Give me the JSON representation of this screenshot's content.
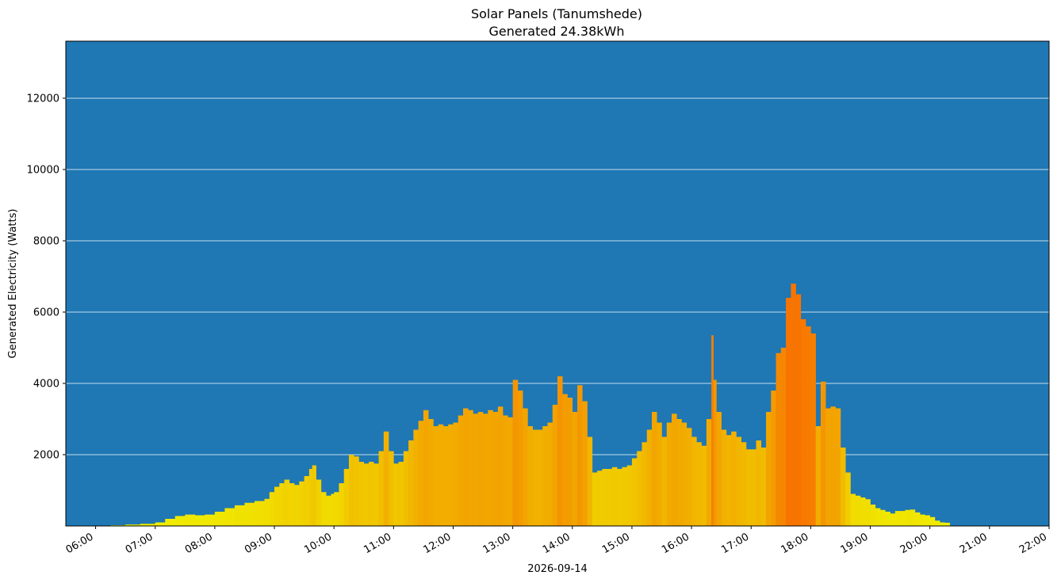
{
  "chart_data": {
    "type": "bar",
    "title": "Solar Panels (Tanumshede)",
    "subtitle": "Generated 24.38kWh",
    "xlabel": "2026-09-14",
    "ylabel": "Generated Electricity (Watts)",
    "xlim": [
      "05:30",
      "22:00"
    ],
    "ylim": [
      0,
      13600
    ],
    "grid": "y",
    "y_ticks": [
      2000,
      4000,
      6000,
      8000,
      10000,
      12000
    ],
    "y_tick_labels": [
      "2000",
      "4000",
      "6000",
      "8000",
      "10000",
      "12000"
    ],
    "x_ticks": [
      "06:00",
      "07:00",
      "08:00",
      "09:00",
      "10:00",
      "11:00",
      "12:00",
      "13:00",
      "14:00",
      "15:00",
      "16:00",
      "17:00",
      "18:00",
      "19:00",
      "20:00",
      "21:00",
      "22:00"
    ],
    "colors": {
      "plot_background": "#1f77b4",
      "grid": "#ffffff",
      "bar_low": "#f0f000",
      "bar_mid": "#f2a900",
      "bar_high": "#f87400"
    },
    "series": [
      {
        "points": [
          [
            "06:15",
            20
          ],
          [
            "06:30",
            40
          ],
          [
            "06:45",
            60
          ],
          [
            "07:00",
            100
          ],
          [
            "07:10",
            200
          ],
          [
            "07:20",
            280
          ],
          [
            "07:30",
            320
          ],
          [
            "07:40",
            300
          ],
          [
            "07:50",
            320
          ],
          [
            "08:00",
            400
          ],
          [
            "08:10",
            500
          ],
          [
            "08:20",
            580
          ],
          [
            "08:30",
            650
          ],
          [
            "08:40",
            700
          ],
          [
            "08:50",
            760
          ],
          [
            "08:55",
            950
          ],
          [
            "09:00",
            1100
          ],
          [
            "09:05",
            1200
          ],
          [
            "09:10",
            1300
          ],
          [
            "09:15",
            1200
          ],
          [
            "09:20",
            1150
          ],
          [
            "09:25",
            1250
          ],
          [
            "09:30",
            1400
          ],
          [
            "09:35",
            1600
          ],
          [
            "09:38",
            1700
          ],
          [
            "09:42",
            1300
          ],
          [
            "09:47",
            950
          ],
          [
            "09:52",
            850
          ],
          [
            "09:57",
            900
          ],
          [
            "10:00",
            950
          ],
          [
            "10:05",
            1200
          ],
          [
            "10:10",
            1600
          ],
          [
            "10:15",
            2000
          ],
          [
            "10:20",
            1950
          ],
          [
            "10:25",
            1800
          ],
          [
            "10:30",
            1750
          ],
          [
            "10:35",
            1800
          ],
          [
            "10:40",
            1750
          ],
          [
            "10:45",
            2100
          ],
          [
            "10:50",
            2650
          ],
          [
            "10:55",
            2100
          ],
          [
            "11:00",
            1750
          ],
          [
            "11:05",
            1800
          ],
          [
            "11:10",
            2100
          ],
          [
            "11:15",
            2400
          ],
          [
            "11:20",
            2700
          ],
          [
            "11:25",
            2950
          ],
          [
            "11:30",
            3250
          ],
          [
            "11:35",
            3000
          ],
          [
            "11:40",
            2800
          ],
          [
            "11:45",
            2850
          ],
          [
            "11:50",
            2800
          ],
          [
            "11:55",
            2850
          ],
          [
            "12:00",
            2900
          ],
          [
            "12:05",
            3100
          ],
          [
            "12:10",
            3300
          ],
          [
            "12:15",
            3250
          ],
          [
            "12:20",
            3150
          ],
          [
            "12:25",
            3200
          ],
          [
            "12:30",
            3150
          ],
          [
            "12:35",
            3250
          ],
          [
            "12:40",
            3200
          ],
          [
            "12:45",
            3350
          ],
          [
            "12:50",
            3100
          ],
          [
            "12:55",
            3050
          ],
          [
            "13:00",
            4100
          ],
          [
            "13:05",
            3800
          ],
          [
            "13:10",
            3300
          ],
          [
            "13:15",
            2800
          ],
          [
            "13:20",
            2700
          ],
          [
            "13:25",
            2700
          ],
          [
            "13:30",
            2800
          ],
          [
            "13:35",
            2900
          ],
          [
            "13:40",
            3400
          ],
          [
            "13:45",
            4200
          ],
          [
            "13:50",
            3700
          ],
          [
            "13:55",
            3600
          ],
          [
            "14:00",
            3200
          ],
          [
            "14:05",
            3950
          ],
          [
            "14:10",
            3500
          ],
          [
            "14:15",
            2500
          ],
          [
            "14:20",
            1500
          ],
          [
            "14:25",
            1550
          ],
          [
            "14:30",
            1600
          ],
          [
            "14:35",
            1600
          ],
          [
            "14:40",
            1650
          ],
          [
            "14:45",
            1600
          ],
          [
            "14:50",
            1650
          ],
          [
            "14:55",
            1700
          ],
          [
            "15:00",
            1900
          ],
          [
            "15:05",
            2100
          ],
          [
            "15:10",
            2350
          ],
          [
            "15:15",
            2700
          ],
          [
            "15:20",
            3200
          ],
          [
            "15:25",
            2900
          ],
          [
            "15:30",
            2500
          ],
          [
            "15:35",
            2900
          ],
          [
            "15:40",
            3150
          ],
          [
            "15:45",
            3000
          ],
          [
            "15:50",
            2900
          ],
          [
            "15:55",
            2750
          ],
          [
            "16:00",
            2500
          ],
          [
            "16:05",
            2350
          ],
          [
            "16:10",
            2250
          ],
          [
            "16:15",
            3000
          ],
          [
            "16:20",
            5350
          ],
          [
            "16:22",
            4100
          ],
          [
            "16:25",
            3200
          ],
          [
            "16:30",
            2700
          ],
          [
            "16:35",
            2550
          ],
          [
            "16:40",
            2650
          ],
          [
            "16:45",
            2500
          ],
          [
            "16:50",
            2350
          ],
          [
            "16:55",
            2150
          ],
          [
            "17:00",
            2150
          ],
          [
            "17:05",
            2400
          ],
          [
            "17:10",
            2200
          ],
          [
            "17:15",
            3200
          ],
          [
            "17:20",
            3800
          ],
          [
            "17:25",
            4850
          ],
          [
            "17:30",
            5000
          ],
          [
            "17:35",
            6400
          ],
          [
            "17:40",
            6800
          ],
          [
            "17:45",
            6500
          ],
          [
            "17:50",
            5800
          ],
          [
            "17:55",
            5600
          ],
          [
            "18:00",
            5400
          ],
          [
            "18:05",
            2800
          ],
          [
            "18:10",
            4050
          ],
          [
            "18:15",
            3300
          ],
          [
            "18:20",
            3350
          ],
          [
            "18:25",
            3300
          ],
          [
            "18:30",
            2200
          ],
          [
            "18:35",
            1500
          ],
          [
            "18:40",
            900
          ],
          [
            "18:45",
            850
          ],
          [
            "18:50",
            800
          ],
          [
            "18:55",
            750
          ],
          [
            "19:00",
            600
          ],
          [
            "19:05",
            500
          ],
          [
            "19:10",
            450
          ],
          [
            "19:15",
            400
          ],
          [
            "19:20",
            350
          ],
          [
            "19:25",
            420
          ],
          [
            "19:30",
            420
          ],
          [
            "19:35",
            450
          ],
          [
            "19:40",
            460
          ],
          [
            "19:45",
            380
          ],
          [
            "19:50",
            320
          ],
          [
            "19:55",
            300
          ],
          [
            "20:00",
            250
          ],
          [
            "20:05",
            150
          ],
          [
            "20:10",
            100
          ],
          [
            "20:15",
            90
          ]
        ]
      }
    ]
  }
}
